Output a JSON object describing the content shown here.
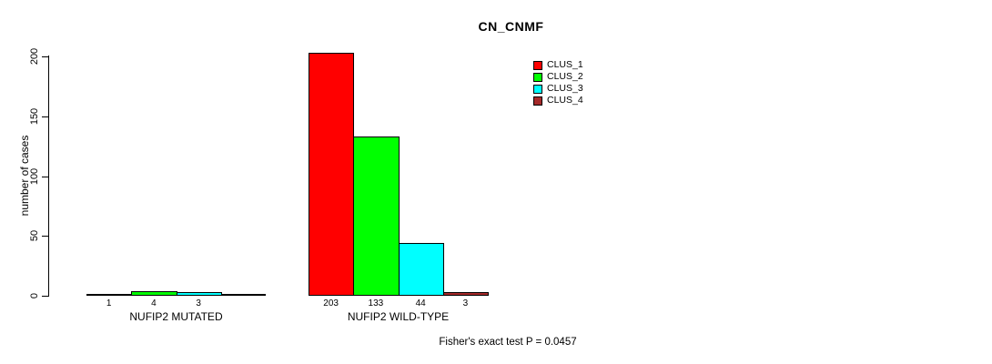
{
  "title": "CN_CNMF",
  "chart_data": {
    "type": "bar",
    "title": "CN_CNMF",
    "xlabel": "",
    "ylabel": "number of cases",
    "ylim": [
      0,
      210
    ],
    "yticks": [
      0,
      50,
      100,
      150,
      200
    ],
    "grid": false,
    "legend_position": "top-right",
    "categories": [
      "NUFIP2 MUTATED",
      "NUFIP2 WILD-TYPE"
    ],
    "series": [
      {
        "name": "CLUS_1",
        "color": "#FF0000",
        "values": [
          1,
          203
        ]
      },
      {
        "name": "CLUS_2",
        "color": "#00FF00",
        "values": [
          4,
          133
        ]
      },
      {
        "name": "CLUS_3",
        "color": "#00FFFF",
        "values": [
          3,
          44
        ]
      },
      {
        "name": "CLUS_4",
        "color": "#A52A2A",
        "values": [
          0,
          3
        ]
      }
    ],
    "bar_value_labels": [
      [
        "1",
        "4",
        "3",
        ""
      ],
      [
        "203",
        "133",
        "44",
        "3"
      ]
    ],
    "annotation": "Fisher's exact test P = 0.0457"
  }
}
